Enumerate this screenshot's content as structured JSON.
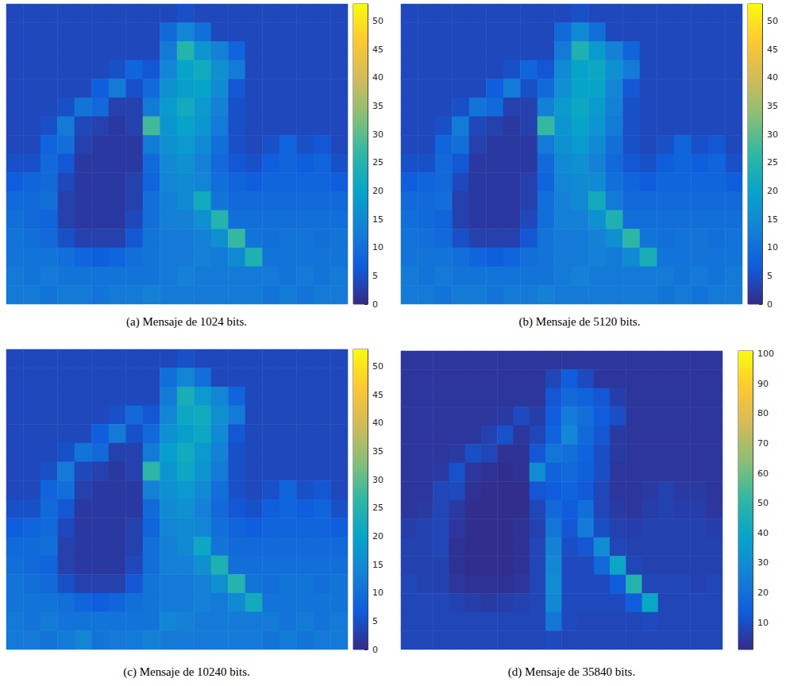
{
  "chart_data": [
    {
      "type": "heatmap",
      "title": "(a) Mensaje de 1024 bits.",
      "colorbar": {
        "range": [
          0,
          53
        ],
        "ticks": [
          0,
          5,
          10,
          15,
          20,
          25,
          30,
          35,
          40,
          45,
          50
        ]
      },
      "cells": [
        [
          4,
          4,
          4,
          4,
          4,
          4,
          4,
          4,
          4,
          4,
          5,
          4,
          4,
          4,
          4,
          4,
          4,
          4,
          4,
          4
        ],
        [
          4,
          4,
          4,
          4,
          4,
          4,
          4,
          4,
          4,
          9,
          14,
          10,
          4,
          4,
          4,
          4,
          4,
          4,
          4,
          4
        ],
        [
          4,
          4,
          4,
          4,
          4,
          4,
          4,
          4,
          4,
          12,
          25,
          17,
          13,
          8,
          4,
          4,
          4,
          4,
          4,
          4
        ],
        [
          4,
          4,
          4,
          4,
          4,
          4,
          5,
          8,
          6,
          14,
          20,
          22,
          16,
          12,
          4,
          4,
          4,
          4,
          4,
          4
        ],
        [
          4,
          4,
          4,
          4,
          4,
          7,
          12,
          5,
          9,
          16,
          19,
          20,
          15,
          6,
          4,
          4,
          4,
          4,
          4,
          4
        ],
        [
          4,
          4,
          4,
          5,
          11,
          9,
          3,
          3,
          12,
          18,
          22,
          18,
          13,
          5,
          4,
          4,
          4,
          4,
          4,
          4
        ],
        [
          4,
          4,
          5,
          12,
          4,
          3,
          2,
          3,
          28,
          17,
          20,
          17,
          12,
          5,
          4,
          4,
          4,
          4,
          4,
          4
        ],
        [
          4,
          4,
          8,
          10,
          3,
          2,
          2,
          2,
          12,
          16,
          18,
          15,
          10,
          5,
          4,
          5,
          8,
          5,
          6,
          4
        ],
        [
          5,
          5,
          9,
          6,
          2,
          2,
          2,
          2,
          9,
          15,
          16,
          13,
          9,
          6,
          5,
          7,
          8,
          7,
          8,
          5
        ],
        [
          7,
          8,
          9,
          4,
          2,
          2,
          2,
          3,
          8,
          14,
          15,
          14,
          10,
          8,
          7,
          8,
          8,
          8,
          8,
          7
        ],
        [
          9,
          9,
          10,
          3,
          2,
          2,
          2,
          3,
          10,
          13,
          15,
          22,
          11,
          9,
          9,
          9,
          9,
          9,
          9,
          9
        ],
        [
          10,
          9,
          8,
          3,
          2,
          2,
          2,
          4,
          10,
          13,
          13,
          16,
          25,
          10,
          10,
          10,
          10,
          10,
          10,
          10
        ],
        [
          11,
          10,
          9,
          5,
          3,
          3,
          3,
          6,
          11,
          12,
          12,
          13,
          16,
          27,
          11,
          10,
          11,
          11,
          10,
          11
        ],
        [
          11,
          11,
          11,
          10,
          8,
          7,
          8,
          10,
          11,
          12,
          12,
          13,
          12,
          15,
          24,
          11,
          11,
          11,
          11,
          11
        ],
        [
          12,
          11,
          12,
          11,
          11,
          11,
          11,
          11,
          11,
          12,
          13,
          12,
          12,
          12,
          12,
          12,
          11,
          12,
          11,
          12
        ],
        [
          12,
          12,
          11,
          12,
          12,
          11,
          12,
          12,
          13,
          12,
          12,
          12,
          12,
          12,
          12,
          11,
          12,
          11,
          12,
          12
        ]
      ]
    },
    {
      "type": "heatmap",
      "title": "(b) Mensaje de 5120 bits.",
      "colorbar": {
        "range": [
          0,
          53
        ],
        "ticks": [
          0,
          5,
          10,
          15,
          20,
          25,
          30,
          35,
          40,
          45,
          50
        ]
      },
      "cells": [
        [
          4,
          4,
          4,
          4,
          4,
          4,
          4,
          4,
          4,
          4,
          5,
          4,
          4,
          4,
          4,
          4,
          4,
          4,
          4,
          4
        ],
        [
          4,
          4,
          4,
          4,
          4,
          4,
          4,
          4,
          4,
          9,
          15,
          10,
          4,
          4,
          4,
          4,
          4,
          4,
          4,
          4
        ],
        [
          4,
          4,
          4,
          4,
          4,
          4,
          4,
          4,
          4,
          12,
          24,
          18,
          13,
          8,
          4,
          4,
          4,
          4,
          4,
          4
        ],
        [
          4,
          4,
          4,
          4,
          4,
          4,
          5,
          8,
          6,
          15,
          20,
          21,
          16,
          12,
          4,
          4,
          4,
          4,
          4,
          4
        ],
        [
          4,
          4,
          4,
          4,
          4,
          7,
          12,
          5,
          9,
          16,
          20,
          20,
          14,
          6,
          4,
          4,
          4,
          4,
          4,
          4
        ],
        [
          4,
          4,
          4,
          5,
          11,
          9,
          3,
          3,
          13,
          18,
          21,
          18,
          13,
          5,
          4,
          4,
          4,
          4,
          4,
          4
        ],
        [
          4,
          4,
          5,
          12,
          4,
          3,
          2,
          3,
          27,
          17,
          20,
          17,
          12,
          5,
          4,
          4,
          4,
          4,
          4,
          4
        ],
        [
          4,
          4,
          8,
          10,
          3,
          2,
          2,
          2,
          12,
          16,
          18,
          15,
          10,
          5,
          4,
          5,
          8,
          5,
          6,
          4
        ],
        [
          5,
          5,
          9,
          6,
          2,
          2,
          2,
          2,
          9,
          15,
          16,
          13,
          9,
          6,
          5,
          7,
          8,
          7,
          8,
          5
        ],
        [
          7,
          8,
          9,
          4,
          2,
          2,
          2,
          3,
          8,
          14,
          15,
          15,
          10,
          8,
          7,
          8,
          8,
          8,
          8,
          7
        ],
        [
          9,
          9,
          10,
          3,
          2,
          2,
          2,
          3,
          10,
          13,
          15,
          22,
          12,
          9,
          9,
          9,
          9,
          9,
          9,
          9
        ],
        [
          10,
          9,
          8,
          3,
          2,
          2,
          2,
          4,
          10,
          13,
          13,
          16,
          24,
          10,
          10,
          10,
          10,
          10,
          10,
          10
        ],
        [
          11,
          10,
          9,
          5,
          3,
          3,
          3,
          6,
          11,
          12,
          12,
          13,
          16,
          26,
          11,
          10,
          11,
          11,
          10,
          11
        ],
        [
          11,
          11,
          11,
          10,
          8,
          7,
          8,
          10,
          11,
          12,
          12,
          13,
          12,
          15,
          23,
          11,
          11,
          11,
          11,
          11
        ],
        [
          12,
          11,
          12,
          11,
          11,
          11,
          11,
          11,
          11,
          12,
          13,
          12,
          12,
          12,
          12,
          12,
          11,
          12,
          11,
          12
        ],
        [
          12,
          12,
          11,
          12,
          12,
          11,
          12,
          12,
          13,
          12,
          12,
          12,
          12,
          12,
          12,
          11,
          12,
          11,
          12,
          12
        ]
      ]
    },
    {
      "type": "heatmap",
      "title": "(c) Mensaje de 10240 bits.",
      "colorbar": {
        "range": [
          0,
          53
        ],
        "ticks": [
          0,
          5,
          10,
          15,
          20,
          25,
          30,
          35,
          40,
          45,
          50
        ]
      },
      "cells": [
        [
          4,
          4,
          4,
          4,
          4,
          4,
          4,
          4,
          4,
          4,
          5,
          4,
          4,
          4,
          4,
          4,
          4,
          4,
          4,
          4
        ],
        [
          4,
          4,
          4,
          4,
          4,
          4,
          4,
          4,
          4,
          10,
          14,
          10,
          4,
          4,
          4,
          4,
          4,
          4,
          4,
          4
        ],
        [
          4,
          4,
          4,
          4,
          4,
          4,
          4,
          4,
          4,
          12,
          23,
          18,
          14,
          8,
          4,
          4,
          4,
          4,
          4,
          4
        ],
        [
          4,
          4,
          4,
          4,
          4,
          4,
          5,
          9,
          6,
          14,
          21,
          22,
          16,
          12,
          4,
          4,
          4,
          4,
          4,
          4
        ],
        [
          4,
          4,
          4,
          4,
          4,
          7,
          12,
          5,
          9,
          16,
          19,
          21,
          15,
          6,
          4,
          4,
          4,
          4,
          4,
          4
        ],
        [
          4,
          4,
          4,
          5,
          11,
          9,
          3,
          3,
          12,
          19,
          22,
          18,
          13,
          5,
          4,
          4,
          4,
          4,
          4,
          4
        ],
        [
          4,
          4,
          5,
          12,
          4,
          3,
          2,
          3,
          26,
          17,
          21,
          17,
          12,
          5,
          4,
          4,
          4,
          4,
          4,
          4
        ],
        [
          4,
          4,
          8,
          10,
          3,
          2,
          2,
          2,
          13,
          16,
          18,
          15,
          10,
          5,
          4,
          5,
          8,
          5,
          6,
          4
        ],
        [
          5,
          5,
          9,
          6,
          2,
          2,
          2,
          2,
          9,
          15,
          16,
          13,
          9,
          6,
          5,
          7,
          8,
          7,
          8,
          5
        ],
        [
          7,
          8,
          9,
          4,
          2,
          2,
          2,
          3,
          8,
          14,
          15,
          14,
          10,
          8,
          7,
          8,
          8,
          8,
          8,
          7
        ],
        [
          9,
          9,
          10,
          3,
          2,
          2,
          2,
          3,
          10,
          13,
          15,
          21,
          11,
          9,
          9,
          9,
          9,
          9,
          9,
          9
        ],
        [
          10,
          9,
          8,
          3,
          2,
          2,
          2,
          4,
          10,
          13,
          13,
          16,
          24,
          10,
          10,
          10,
          10,
          10,
          10,
          10
        ],
        [
          11,
          10,
          9,
          5,
          3,
          3,
          3,
          6,
          11,
          12,
          12,
          13,
          16,
          25,
          11,
          10,
          11,
          11,
          10,
          11
        ],
        [
          11,
          11,
          11,
          10,
          8,
          7,
          8,
          10,
          11,
          12,
          12,
          13,
          12,
          15,
          22,
          11,
          11,
          11,
          11,
          11
        ],
        [
          12,
          11,
          12,
          11,
          11,
          11,
          11,
          11,
          11,
          14,
          13,
          12,
          12,
          12,
          12,
          12,
          11,
          12,
          11,
          12
        ],
        [
          12,
          12,
          11,
          12,
          14,
          11,
          12,
          12,
          13,
          12,
          12,
          12,
          12,
          12,
          12,
          11,
          12,
          11,
          12,
          12
        ]
      ]
    },
    {
      "type": "heatmap",
      "title": "(d) Mensaje de 35840 bits.",
      "colorbar": {
        "range": [
          1,
          101
        ],
        "ticks": [
          10,
          20,
          30,
          40,
          50,
          60,
          70,
          80,
          90,
          100
        ]
      },
      "cells": [
        [
          4,
          4,
          4,
          4,
          4,
          4,
          4,
          4,
          4,
          4,
          4,
          4,
          4,
          4,
          4,
          4,
          4,
          4,
          4,
          4
        ],
        [
          4,
          4,
          4,
          4,
          4,
          4,
          4,
          4,
          4,
          8,
          14,
          9,
          4,
          4,
          4,
          4,
          4,
          4,
          4,
          4
        ],
        [
          4,
          4,
          4,
          4,
          4,
          4,
          4,
          4,
          4,
          12,
          18,
          16,
          12,
          6,
          4,
          4,
          4,
          4,
          4,
          4
        ],
        [
          4,
          4,
          4,
          4,
          4,
          4,
          5,
          9,
          6,
          14,
          24,
          20,
          14,
          10,
          4,
          4,
          4,
          4,
          4,
          4
        ],
        [
          4,
          4,
          4,
          4,
          4,
          7,
          11,
          4,
          8,
          16,
          28,
          18,
          12,
          5,
          4,
          4,
          4,
          4,
          4,
          4
        ],
        [
          4,
          4,
          4,
          5,
          10,
          8,
          3,
          3,
          12,
          22,
          20,
          16,
          10,
          5,
          4,
          4,
          4,
          4,
          4,
          4
        ],
        [
          4,
          4,
          5,
          11,
          4,
          3,
          2,
          3,
          30,
          16,
          18,
          15,
          10,
          4,
          4,
          4,
          4,
          4,
          4,
          4
        ],
        [
          4,
          4,
          8,
          9,
          3,
          2,
          2,
          2,
          12,
          14,
          16,
          13,
          8,
          4,
          4,
          5,
          7,
          5,
          5,
          4
        ],
        [
          4,
          5,
          8,
          5,
          2,
          2,
          2,
          2,
          8,
          18,
          14,
          20,
          8,
          5,
          4,
          6,
          7,
          6,
          6,
          4
        ],
        [
          6,
          7,
          8,
          4,
          2,
          2,
          2,
          3,
          7,
          22,
          12,
          24,
          10,
          7,
          6,
          7,
          7,
          7,
          7,
          6
        ],
        [
          7,
          7,
          8,
          3,
          2,
          2,
          2,
          3,
          8,
          26,
          10,
          12,
          30,
          8,
          7,
          7,
          7,
          7,
          7,
          7
        ],
        [
          7,
          7,
          7,
          3,
          2,
          2,
          2,
          3,
          8,
          28,
          9,
          9,
          18,
          40,
          8,
          7,
          7,
          7,
          7,
          7
        ],
        [
          8,
          7,
          7,
          4,
          3,
          3,
          3,
          4,
          8,
          30,
          9,
          9,
          9,
          14,
          48,
          8,
          8,
          8,
          7,
          8
        ],
        [
          8,
          8,
          8,
          7,
          6,
          5,
          6,
          7,
          8,
          28,
          9,
          9,
          9,
          9,
          14,
          40,
          8,
          8,
          8,
          8
        ],
        [
          8,
          8,
          8,
          8,
          8,
          8,
          8,
          8,
          8,
          22,
          9,
          8,
          8,
          8,
          8,
          9,
          8,
          8,
          8,
          8
        ],
        [
          8,
          8,
          8,
          8,
          8,
          8,
          8,
          8,
          8,
          9,
          8,
          8,
          8,
          8,
          8,
          8,
          8,
          8,
          8,
          8
        ]
      ]
    }
  ]
}
